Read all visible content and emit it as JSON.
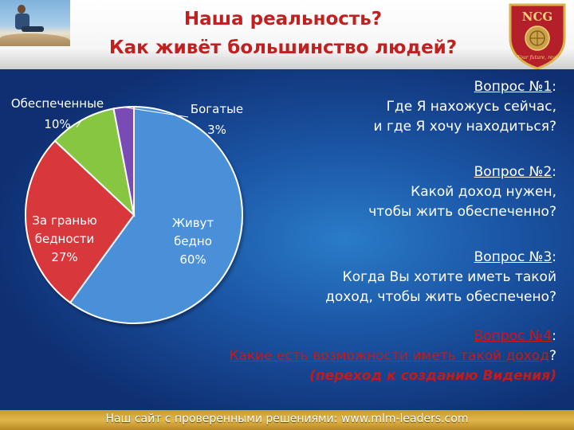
{
  "header": {
    "title_line1": "Наша реальность?",
    "title_line2": "Как живёт большинство людей?"
  },
  "logo": {
    "text": "NCG",
    "tagline": "Your future, real",
    "icon": "ncg-crest-icon",
    "color": "#b3202a",
    "gold": "#d9b24a"
  },
  "chart_data": {
    "type": "pie",
    "slices": [
      {
        "label": "Живут бедно",
        "value": 60,
        "value_text": "60%",
        "color": "#4a90d9"
      },
      {
        "label": "За гранью бедности",
        "value": 27,
        "value_text": "27%",
        "color": "#d8393a"
      },
      {
        "label": "Обеспеченные",
        "value": 10,
        "value_text": "10%",
        "color": "#86c63f"
      },
      {
        "label": "Богатые",
        "value": 3,
        "value_text": "3%",
        "color": "#7a4bb4"
      }
    ],
    "label_lines": [
      {
        "name": "Живут",
        "slice": 0
      },
      {
        "name": "бедно",
        "slice": 0
      },
      {
        "name": "60%",
        "slice": 0
      },
      {
        "name": "За гранью",
        "slice": 1
      },
      {
        "name": "бедности",
        "slice": 1
      },
      {
        "name": "27%",
        "slice": 1
      },
      {
        "name": "Обеспеченные",
        "slice": 2
      },
      {
        "name": "10%",
        "slice": 2
      },
      {
        "name": "Богатые",
        "slice": 3
      },
      {
        "name": "3%",
        "slice": 3
      }
    ]
  },
  "questions": {
    "q1": {
      "number": "Вопрос №1",
      "colon": ":",
      "line1": "Где Я нахожусь сейчас,",
      "line2": "и где Я хочу находиться?"
    },
    "q2": {
      "number": "Вопрос №2",
      "colon": ":",
      "line1": "Какой доход нужен,",
      "line2": "чтобы жить обеспеченно?"
    },
    "q3": {
      "number": "Вопрос №3",
      "colon": ":",
      "line1": "Когда Вы хотите иметь такой",
      "line2": "доход, чтобы жить обеспечено?"
    },
    "q4": {
      "number": "Вопрос №4",
      "colon": ":",
      "line1": "Какие есть возможности иметь такой доход",
      "line1_end": "?",
      "line2": "(переход к созданию Видения)"
    }
  },
  "footer": {
    "text": "Наш сайт с проверенными решениями: www.mlm-leaders.com"
  },
  "colors": {
    "title_red": "#c02020",
    "background_blue": "#1b56a6",
    "footer_gold": "#d4a63b"
  }
}
